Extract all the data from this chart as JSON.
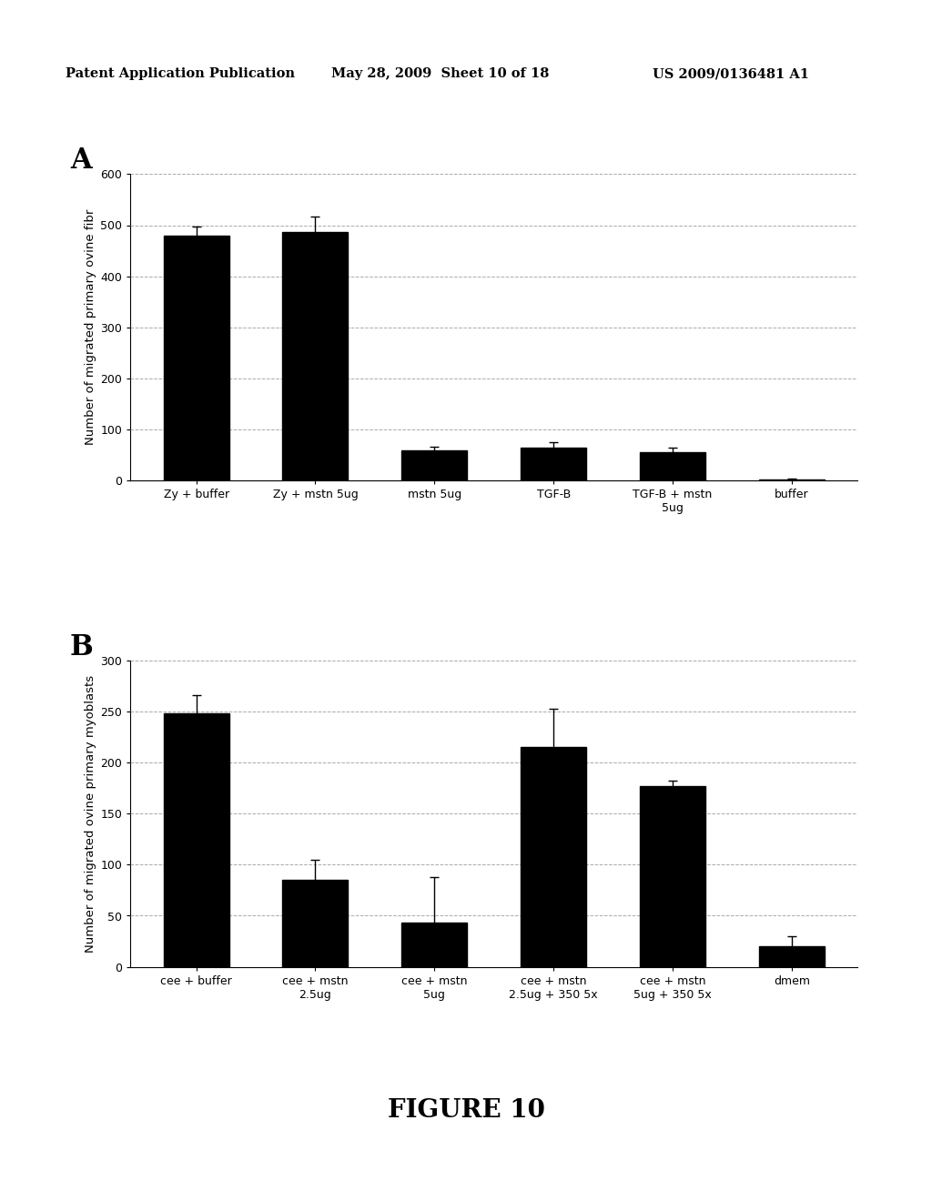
{
  "header_left": "Patent Application Publication",
  "header_mid": "May 28, 2009  Sheet 10 of 18",
  "header_right": "US 2009/0136481 A1",
  "figure_label": "FIGURE 10",
  "panel_A": {
    "label": "A",
    "categories": [
      "Zy + buffer",
      "Zy + mstn 5ug",
      "mstn 5ug",
      "TGF-B",
      "TGF-B + mstn\n5ug",
      "buffer"
    ],
    "values": [
      480,
      487,
      58,
      65,
      55,
      2
    ],
    "errors": [
      18,
      30,
      8,
      10,
      10,
      2
    ],
    "ylabel": "Number of migrated primary ovine fibr",
    "ylim": [
      0,
      600
    ],
    "yticks": [
      0,
      100,
      200,
      300,
      400,
      500,
      600
    ],
    "bar_color": "#000000",
    "bar_width": 0.55
  },
  "panel_B": {
    "label": "B",
    "categories": [
      "cee + buffer",
      "cee + mstn\n2.5ug",
      "cee + mstn\n5ug",
      "cee + mstn\n2.5ug + 350 5x",
      "cee + mstn\n5ug + 350 5x",
      "dmem"
    ],
    "values": [
      248,
      85,
      43,
      215,
      177,
      20
    ],
    "errors": [
      18,
      20,
      45,
      38,
      5,
      10
    ],
    "ylabel": "Number of migrated ovine primary myoblasts",
    "ylim": [
      0,
      300
    ],
    "yticks": [
      0,
      50,
      100,
      150,
      200,
      250,
      300
    ],
    "bar_color": "#000000",
    "bar_width": 0.55
  },
  "background_color": "#ffffff",
  "grid_color": "#aaaaaa",
  "grid_style": "--",
  "header_fontsize": 10.5,
  "panel_label_fontsize": 22,
  "axis_label_fontsize": 9.5,
  "tick_fontsize": 9,
  "figure_label_fontsize": 20
}
